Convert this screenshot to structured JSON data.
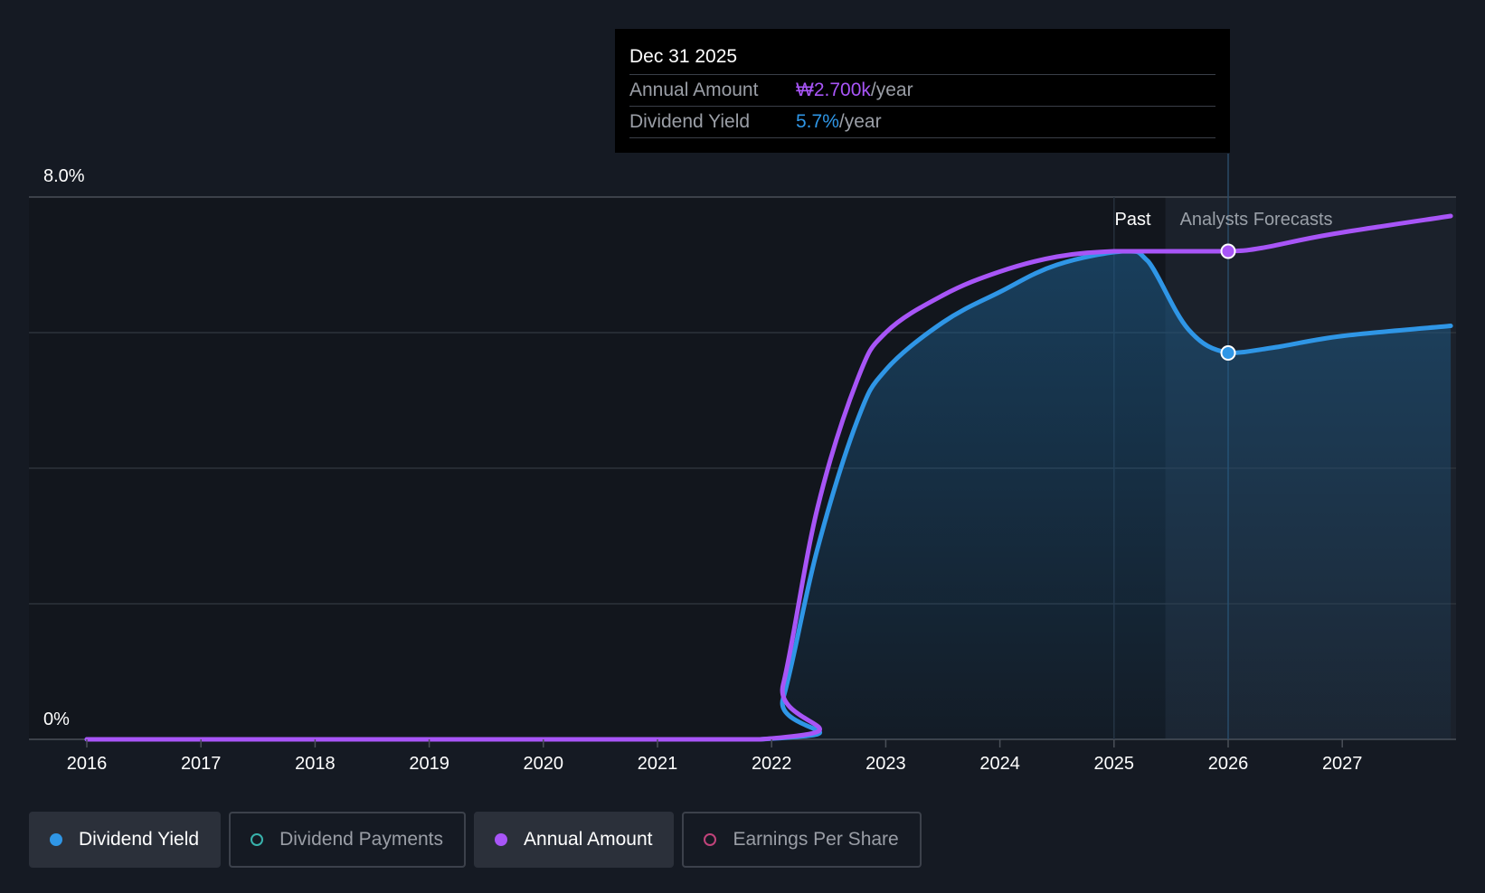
{
  "tooltip": {
    "date": "Dec 31 2025",
    "rows": [
      {
        "label": "Annual Amount",
        "value": "₩2.700k",
        "unit": "/year"
      },
      {
        "label": "Dividend Yield",
        "value": "5.7%",
        "unit": "/year"
      }
    ]
  },
  "legend": [
    {
      "label": "Dividend Yield",
      "color": "#2f96e6",
      "active": true
    },
    {
      "label": "Dividend Payments",
      "color": "#38b2ac",
      "active": false
    },
    {
      "label": "Annual Amount",
      "color": "#a855f7",
      "active": true
    },
    {
      "label": "Earnings Per Share",
      "color": "#c0437a",
      "active": false
    }
  ],
  "chart_data": {
    "type": "line",
    "y_top_label": "8.0%",
    "y_bottom_label": "0%",
    "ylim": [
      0,
      8.0
    ],
    "xlim": [
      2015.5,
      2027.95
    ],
    "x_ticks": [
      "2016",
      "2017",
      "2018",
      "2019",
      "2020",
      "2021",
      "2022",
      "2023",
      "2024",
      "2025",
      "2026",
      "2027"
    ],
    "grid": true,
    "past_label": "Past",
    "forecast_label": "Analysts Forecasts",
    "forecast_start": 2025.45,
    "highlight_x": 2026.0,
    "series": [
      {
        "name": "Annual Amount",
        "color": "#a855f7",
        "points": [
          [
            2016,
            0
          ],
          [
            2021.9,
            0
          ],
          [
            2022.1,
            0.8
          ],
          [
            2022.4,
            3.4
          ],
          [
            2022.75,
            5.3
          ],
          [
            2023.0,
            6.0
          ],
          [
            2023.5,
            6.55
          ],
          [
            2024.0,
            6.9
          ],
          [
            2024.5,
            7.12
          ],
          [
            2025.0,
            7.2
          ],
          [
            2025.5,
            7.2
          ],
          [
            2026.0,
            7.2
          ],
          [
            2026.3,
            7.25
          ],
          [
            2026.9,
            7.45
          ],
          [
            2027.95,
            7.72
          ]
        ]
      },
      {
        "name": "Dividend Yield",
        "color": "#2f96e6",
        "fill": true,
        "points": [
          [
            2016,
            0
          ],
          [
            2021.9,
            0
          ],
          [
            2022.1,
            0.6
          ],
          [
            2022.4,
            2.8
          ],
          [
            2022.75,
            4.7
          ],
          [
            2023.0,
            5.45
          ],
          [
            2023.5,
            6.15
          ],
          [
            2024.0,
            6.6
          ],
          [
            2024.5,
            7.0
          ],
          [
            2025.1,
            7.2
          ],
          [
            2025.3,
            7.05
          ],
          [
            2025.65,
            6.05
          ],
          [
            2026.0,
            5.7
          ],
          [
            2026.4,
            5.78
          ],
          [
            2027.0,
            5.95
          ],
          [
            2027.95,
            6.1
          ]
        ]
      }
    ]
  }
}
